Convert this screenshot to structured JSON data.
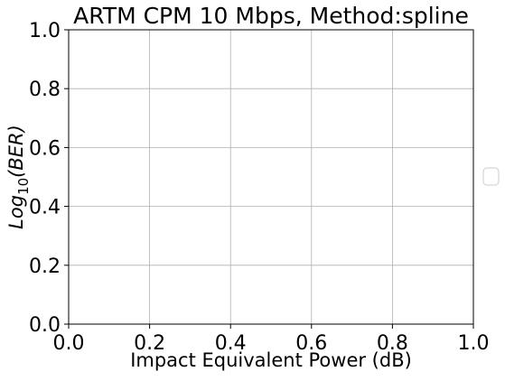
{
  "chart_data": {
    "type": "line",
    "title": "ARTM CPM 10 Mbps, Method:spline",
    "xlabel": "Impact Equivalent Power (dB)",
    "ylabel": {
      "base": "Log",
      "subscript": "10",
      "argument": "(BER)"
    },
    "xlim": [
      0.0,
      1.0
    ],
    "ylim": [
      0.0,
      1.0
    ],
    "x_ticks": [
      "0.0",
      "0.2",
      "0.4",
      "0.6",
      "0.8",
      "1.0"
    ],
    "y_ticks": [
      "0.0",
      "0.2",
      "0.4",
      "0.6",
      "0.8",
      "1.0"
    ],
    "grid": true,
    "legend": {
      "placement": "right, outside plot",
      "entries": []
    },
    "series": []
  },
  "colors": {
    "background": "#ffffff",
    "grid": "#b0b0b0",
    "axes": "#000000",
    "legend_border": "#cccccc"
  }
}
